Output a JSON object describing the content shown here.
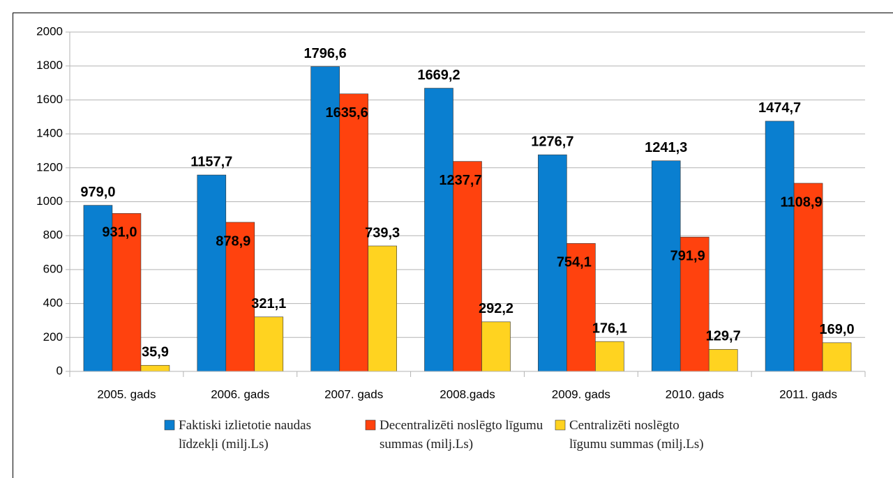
{
  "chart_data": {
    "type": "bar",
    "categories": [
      "2005. gads",
      "2006. gads",
      "2007. gads",
      "2008.gads",
      "2009. gads",
      "2010. gads",
      "2011. gads"
    ],
    "series": [
      {
        "name": "Faktiski izlietotie naudas līdzekļi (milj.Ls)",
        "color": "#0a7fd0",
        "values": [
          979.0,
          1157.7,
          1796.6,
          1669.2,
          1276.7,
          1241.3,
          1474.7
        ],
        "value_labels": [
          "979,0",
          "1157,7",
          "1796,6",
          "1669,2",
          "1276,7",
          "1241,3",
          "1474,7"
        ]
      },
      {
        "name": "Decentralizēti noslēgto līgumu summas (milj.Ls)",
        "color": "#ff420e",
        "values": [
          931.0,
          878.9,
          1635.6,
          1237.7,
          754.1,
          791.9,
          1108.9
        ],
        "value_labels": [
          "931,0",
          "878,9",
          "1635,6",
          "1237,7",
          "754,1",
          "791,9",
          "1108,9"
        ]
      },
      {
        "name": "Centralizēti noslēgto līgumu summas (milj.Ls)",
        "color": "#ffd320",
        "values": [
          35.9,
          321.1,
          739.3,
          292.2,
          176.1,
          129.7,
          169.0
        ],
        "value_labels": [
          "35,9",
          "321,1",
          "739,3",
          "292,2",
          "176,1",
          "129,7",
          "169,0"
        ]
      }
    ],
    "ylim": [
      0,
      2000
    ],
    "yticks": [
      0,
      200,
      400,
      600,
      800,
      1000,
      1200,
      1400,
      1600,
      1800,
      2000
    ],
    "grid": true
  }
}
